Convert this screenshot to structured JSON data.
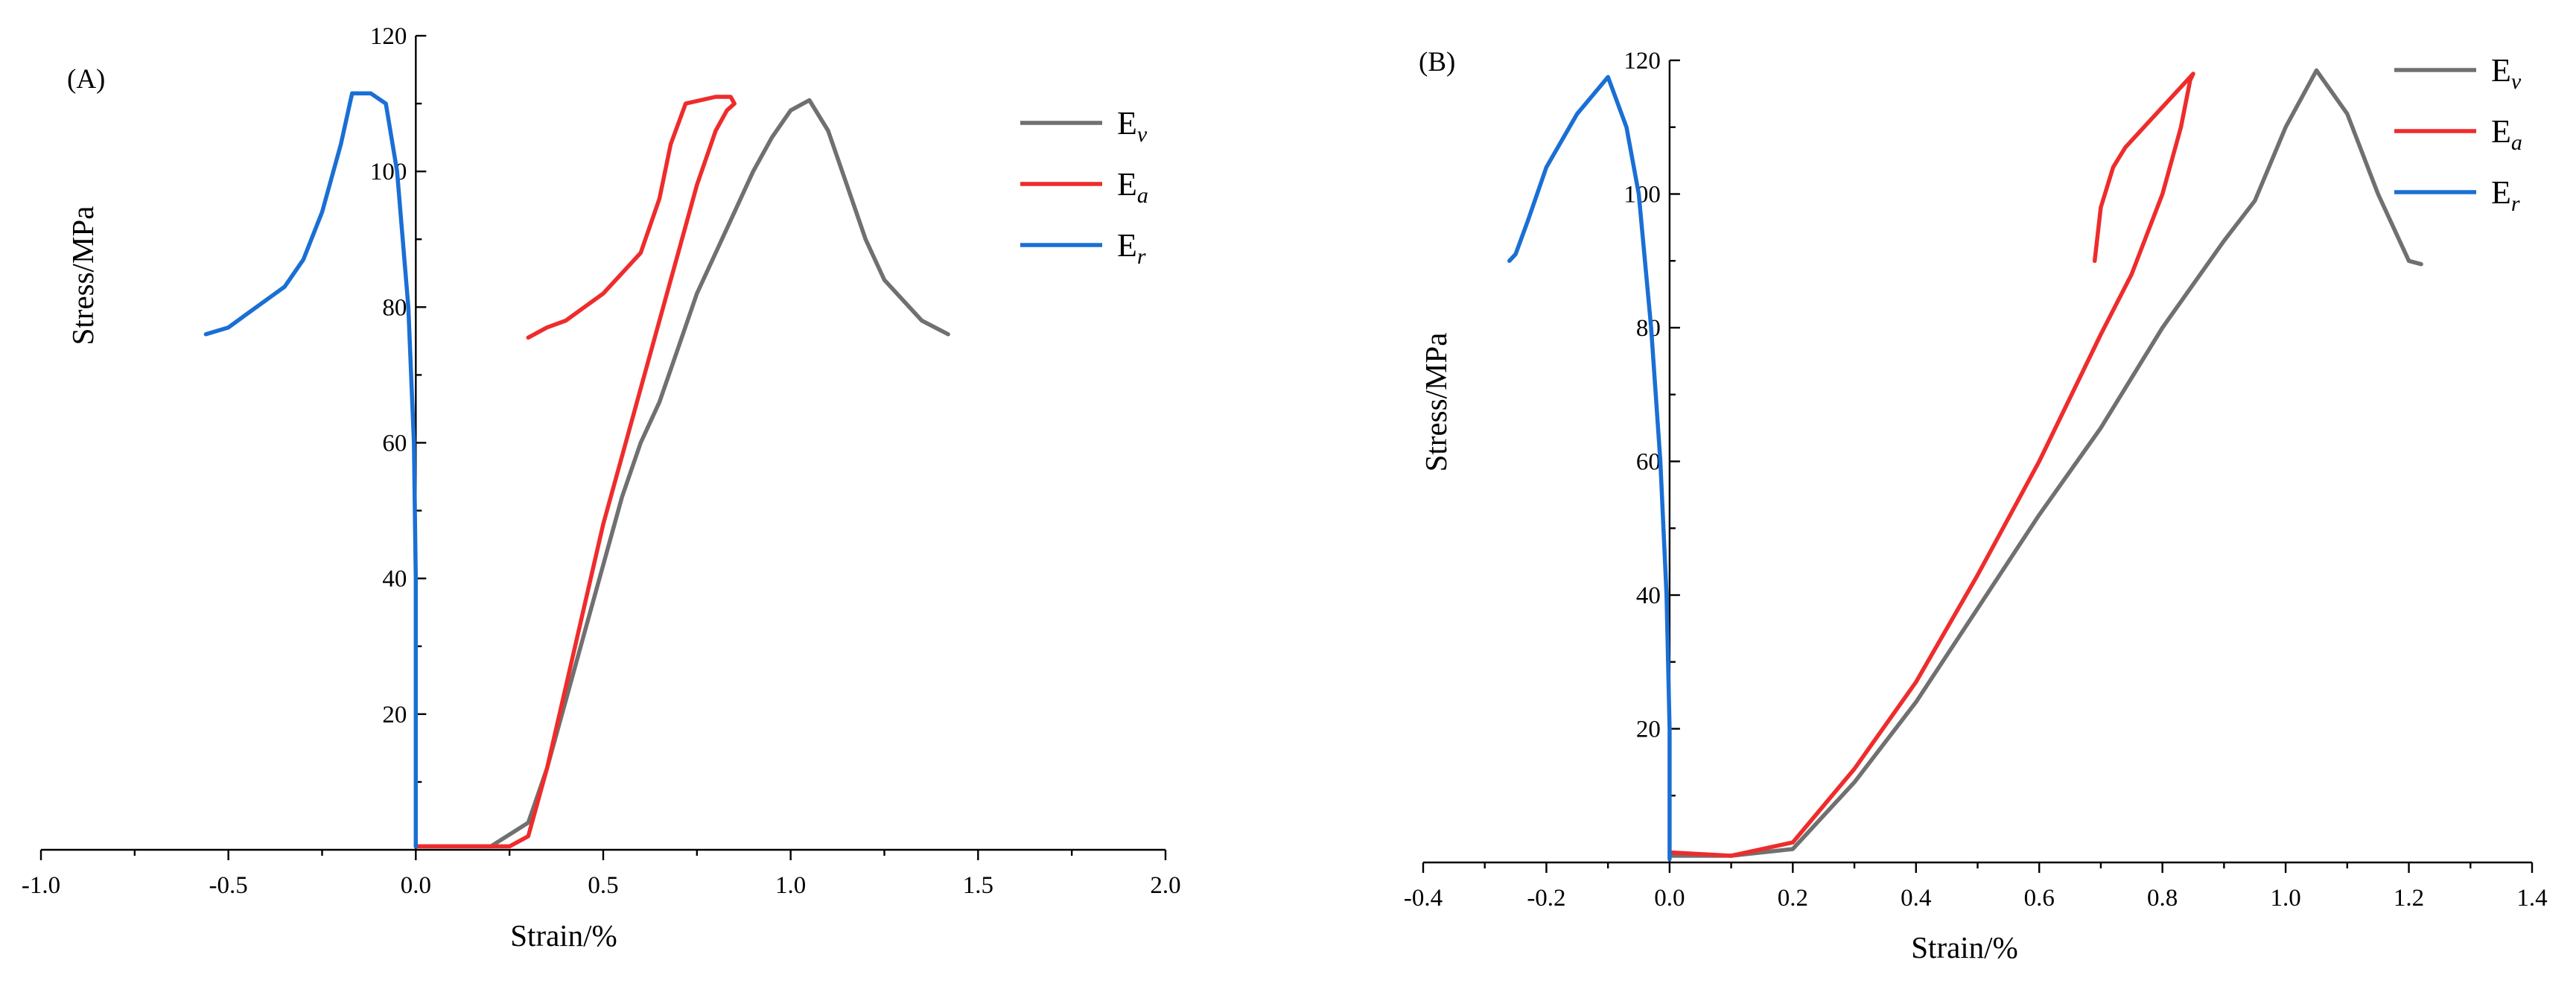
{
  "chart_data": [
    {
      "type": "line",
      "panel_label": "(A)",
      "xlabel": "Strain/%",
      "ylabel": "Stress/MPa",
      "xlim": [
        -1.0,
        2.0
      ],
      "ylim": [
        0,
        120
      ],
      "xticks": [
        -1.0,
        -0.5,
        0.0,
        0.5,
        1.0,
        1.5,
        2.0
      ],
      "xtick_labels": [
        "-1.0",
        "-0.5",
        "0.0",
        "0.5",
        "1.0",
        "1.5",
        "2.0"
      ],
      "yticks": [
        20,
        40,
        60,
        80,
        100,
        120
      ],
      "ytick_labels": [
        "20",
        "40",
        "60",
        "80",
        "100",
        "120"
      ],
      "legend_position": "top-right",
      "series": [
        {
          "name": "E",
          "sub": "v",
          "color": "#707070",
          "points": [
            [
              0.0,
              0.5
            ],
            [
              0.2,
              0.5
            ],
            [
              0.3,
              4
            ],
            [
              0.35,
              12
            ],
            [
              0.4,
              22
            ],
            [
              0.45,
              32
            ],
            [
              0.5,
              42
            ],
            [
              0.55,
              52
            ],
            [
              0.6,
              60
            ],
            [
              0.65,
              66
            ],
            [
              0.7,
              74
            ],
            [
              0.75,
              82
            ],
            [
              0.8,
              88
            ],
            [
              0.85,
              94
            ],
            [
              0.9,
              100
            ],
            [
              0.95,
              105
            ],
            [
              1.0,
              109
            ],
            [
              1.05,
              110.5
            ],
            [
              1.1,
              106
            ],
            [
              1.15,
              98
            ],
            [
              1.2,
              90
            ],
            [
              1.25,
              84
            ],
            [
              1.3,
              81
            ],
            [
              1.35,
              78
            ],
            [
              1.42,
              76
            ]
          ]
        },
        {
          "name": "E",
          "sub": "a",
          "color": "#ee2c2c",
          "points": [
            [
              0.0,
              0.5
            ],
            [
              0.25,
              0.5
            ],
            [
              0.3,
              2
            ],
            [
              0.35,
              12
            ],
            [
              0.4,
              24
            ],
            [
              0.45,
              36
            ],
            [
              0.5,
              48
            ],
            [
              0.55,
              58
            ],
            [
              0.6,
              68
            ],
            [
              0.65,
              78
            ],
            [
              0.7,
              88
            ],
            [
              0.75,
              98
            ],
            [
              0.8,
              106
            ],
            [
              0.83,
              109
            ],
            [
              0.85,
              110
            ],
            [
              0.84,
              111
            ],
            [
              0.8,
              111
            ],
            [
              0.72,
              110
            ],
            [
              0.68,
              104
            ],
            [
              0.65,
              96
            ],
            [
              0.6,
              88
            ],
            [
              0.55,
              85
            ],
            [
              0.5,
              82
            ],
            [
              0.45,
              80
            ],
            [
              0.4,
              78
            ],
            [
              0.35,
              77
            ],
            [
              0.3,
              75.5
            ]
          ]
        },
        {
          "name": "E",
          "sub": "r",
          "color": "#1a6fd4",
          "points": [
            [
              0.0,
              0.5
            ],
            [
              0.0,
              20
            ],
            [
              0.0,
              40
            ],
            [
              -0.005,
              60
            ],
            [
              -0.02,
              80
            ],
            [
              -0.05,
              100
            ],
            [
              -0.08,
              110
            ],
            [
              -0.12,
              111.5
            ],
            [
              -0.17,
              111.5
            ],
            [
              -0.2,
              104
            ],
            [
              -0.25,
              94
            ],
            [
              -0.3,
              87
            ],
            [
              -0.35,
              83
            ],
            [
              -0.4,
              81
            ],
            [
              -0.45,
              79
            ],
            [
              -0.5,
              77
            ],
            [
              -0.56,
              76
            ]
          ]
        }
      ]
    },
    {
      "type": "line",
      "panel_label": "(B)",
      "xlabel": "Strain/%",
      "ylabel": "Stress/MPa",
      "xlim": [
        -0.4,
        1.4
      ],
      "ylim": [
        0,
        120
      ],
      "xticks": [
        -0.4,
        -0.2,
        0.0,
        0.2,
        0.4,
        0.6,
        0.8,
        1.0,
        1.2,
        1.4
      ],
      "xtick_labels": [
        "-0.4",
        "-0.2",
        "0.0",
        "0.2",
        "0.4",
        "0.6",
        "0.8",
        "1.0",
        "1.2",
        "1.4"
      ],
      "yticks": [
        20,
        40,
        60,
        80,
        100,
        120
      ],
      "ytick_labels": [
        "20",
        "40",
        "60",
        "80",
        "100",
        "120"
      ],
      "legend_position": "top-right",
      "series": [
        {
          "name": "E",
          "sub": "v",
          "color": "#707070",
          "points": [
            [
              0.0,
              1
            ],
            [
              0.1,
              1
            ],
            [
              0.2,
              2
            ],
            [
              0.3,
              12
            ],
            [
              0.4,
              24
            ],
            [
              0.5,
              38
            ],
            [
              0.6,
              52
            ],
            [
              0.7,
              65
            ],
            [
              0.8,
              80
            ],
            [
              0.9,
              93
            ],
            [
              0.95,
              99
            ],
            [
              1.0,
              110
            ],
            [
              1.05,
              118.5
            ],
            [
              1.1,
              112
            ],
            [
              1.15,
              100
            ],
            [
              1.2,
              90
            ],
            [
              1.22,
              89.5
            ]
          ]
        },
        {
          "name": "E",
          "sub": "a",
          "color": "#ee2c2c",
          "points": [
            [
              0.0,
              1.5
            ],
            [
              0.1,
              1
            ],
            [
              0.2,
              3
            ],
            [
              0.3,
              14
            ],
            [
              0.4,
              27
            ],
            [
              0.5,
              43
            ],
            [
              0.6,
              60
            ],
            [
              0.7,
              79
            ],
            [
              0.75,
              88
            ],
            [
              0.8,
              100
            ],
            [
              0.83,
              110
            ],
            [
              0.845,
              117
            ],
            [
              0.85,
              118
            ],
            [
              0.82,
              115
            ],
            [
              0.78,
              111
            ],
            [
              0.74,
              107
            ],
            [
              0.72,
              104
            ],
            [
              0.7,
              98
            ],
            [
              0.69,
              90
            ]
          ]
        },
        {
          "name": "E",
          "sub": "r",
          "color": "#1a6fd4",
          "points": [
            [
              0.0,
              0.5
            ],
            [
              0.0,
              20
            ],
            [
              -0.005,
              40
            ],
            [
              -0.015,
              60
            ],
            [
              -0.03,
              80
            ],
            [
              -0.05,
              100
            ],
            [
              -0.07,
              110
            ],
            [
              -0.1,
              117.5
            ],
            [
              -0.15,
              112
            ],
            [
              -0.2,
              104
            ],
            [
              -0.23,
              96
            ],
            [
              -0.25,
              91
            ],
            [
              -0.26,
              90
            ]
          ]
        }
      ]
    }
  ]
}
